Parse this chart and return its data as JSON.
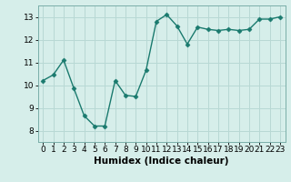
{
  "x": [
    0,
    1,
    2,
    3,
    4,
    5,
    6,
    7,
    8,
    9,
    10,
    11,
    12,
    13,
    14,
    15,
    16,
    17,
    18,
    19,
    20,
    21,
    22,
    23
  ],
  "y": [
    10.2,
    10.45,
    11.1,
    9.85,
    8.65,
    8.2,
    8.2,
    10.2,
    9.55,
    9.5,
    10.65,
    12.8,
    13.1,
    12.6,
    11.8,
    12.55,
    12.45,
    12.4,
    12.45,
    12.4,
    12.45,
    12.9,
    12.9,
    13.0
  ],
  "line_color": "#1a7a6e",
  "marker": "D",
  "marker_size": 2.5,
  "bg_color": "#d6eeea",
  "grid_color": "#b8d8d4",
  "xlabel": "Humidex (Indice chaleur)",
  "xlim": [
    -0.5,
    23.5
  ],
  "ylim": [
    7.5,
    13.5
  ],
  "yticks": [
    8,
    9,
    10,
    11,
    12,
    13
  ],
  "xticks": [
    0,
    1,
    2,
    3,
    4,
    5,
    6,
    7,
    8,
    9,
    10,
    11,
    12,
    13,
    14,
    15,
    16,
    17,
    18,
    19,
    20,
    21,
    22,
    23
  ],
  "xlabel_fontsize": 7.5,
  "tick_fontsize": 6.5,
  "line_width": 1.0
}
